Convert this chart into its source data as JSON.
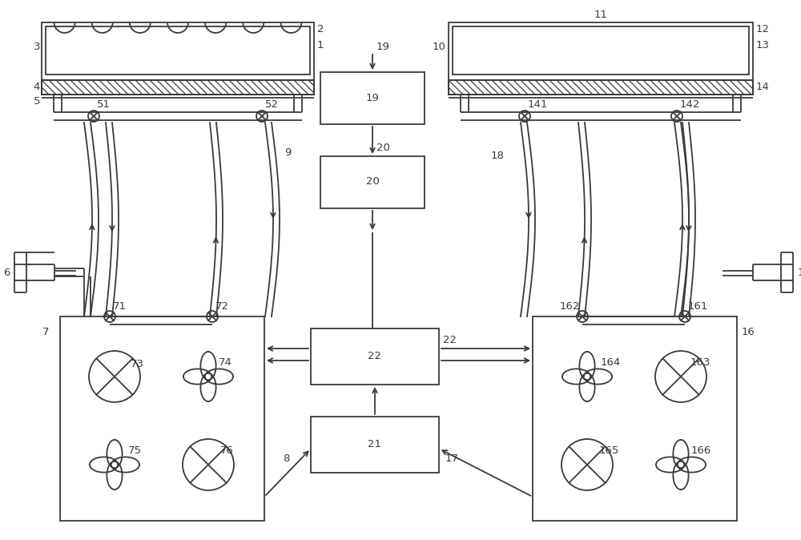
{
  "bg_color": "#ffffff",
  "line_color": "#3a3a3a",
  "fig_width": 10.0,
  "fig_height": 6.74,
  "dpi": 100
}
